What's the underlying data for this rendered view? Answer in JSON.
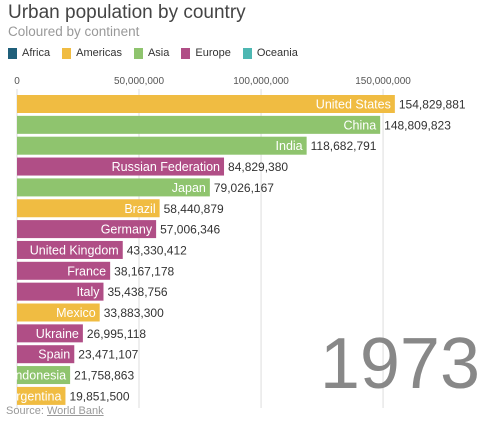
{
  "header": {
    "title": "Urban population by country",
    "subtitle": "Coloured by continent"
  },
  "legend": [
    {
      "name": "Africa",
      "color": "#1f5f7a"
    },
    {
      "name": "Americas",
      "color": "#f0bc42"
    },
    {
      "name": "Asia",
      "color": "#8fc46e"
    },
    {
      "name": "Europe",
      "color": "#b04e86"
    },
    {
      "name": "Oceania",
      "color": "#4db7b2"
    }
  ],
  "source": {
    "prefix": "Source: ",
    "link_text": "World Bank"
  },
  "chart_data": {
    "type": "bar",
    "orientation": "horizontal",
    "year": "1973",
    "xlim": [
      0,
      168000000
    ],
    "x_ticks": [
      0,
      50000000,
      100000000,
      150000000
    ],
    "x_tick_labels": [
      "0",
      "50,000,000",
      "100,000,000",
      "150,000,000"
    ],
    "grid": true,
    "bars": [
      {
        "country": "United States",
        "value": 154829881,
        "value_label": "154,829,881",
        "continent": "Americas"
      },
      {
        "country": "China",
        "value": 148809823,
        "value_label": "148,809,823",
        "continent": "Asia"
      },
      {
        "country": "India",
        "value": 118682791,
        "value_label": "118,682,791",
        "continent": "Asia"
      },
      {
        "country": "Russian Federation",
        "value": 84829380,
        "value_label": "84,829,380",
        "continent": "Europe"
      },
      {
        "country": "Japan",
        "value": 79026167,
        "value_label": "79,026,167",
        "continent": "Asia"
      },
      {
        "country": "Brazil",
        "value": 58440879,
        "value_label": "58,440,879",
        "continent": "Americas"
      },
      {
        "country": "Germany",
        "value": 57006346,
        "value_label": "57,006,346",
        "continent": "Europe"
      },
      {
        "country": "United Kingdom",
        "value": 43330412,
        "value_label": "43,330,412",
        "continent": "Europe"
      },
      {
        "country": "France",
        "value": 38167178,
        "value_label": "38,167,178",
        "continent": "Europe"
      },
      {
        "country": "Italy",
        "value": 35438756,
        "value_label": "35,438,756",
        "continent": "Europe"
      },
      {
        "country": "Mexico",
        "value": 33883300,
        "value_label": "33,883,300",
        "continent": "Americas"
      },
      {
        "country": "Ukraine",
        "value": 26995118,
        "value_label": "26,995,118",
        "continent": "Europe"
      },
      {
        "country": "Spain",
        "value": 23471107,
        "value_label": "23,471,107",
        "continent": "Europe"
      },
      {
        "country": "Indonesia",
        "value": 21758863,
        "value_label": "21,758,863",
        "continent": "Asia"
      },
      {
        "country": "Argentina",
        "value": 19851500,
        "value_label": "19,851,500",
        "continent": "Americas"
      }
    ]
  }
}
